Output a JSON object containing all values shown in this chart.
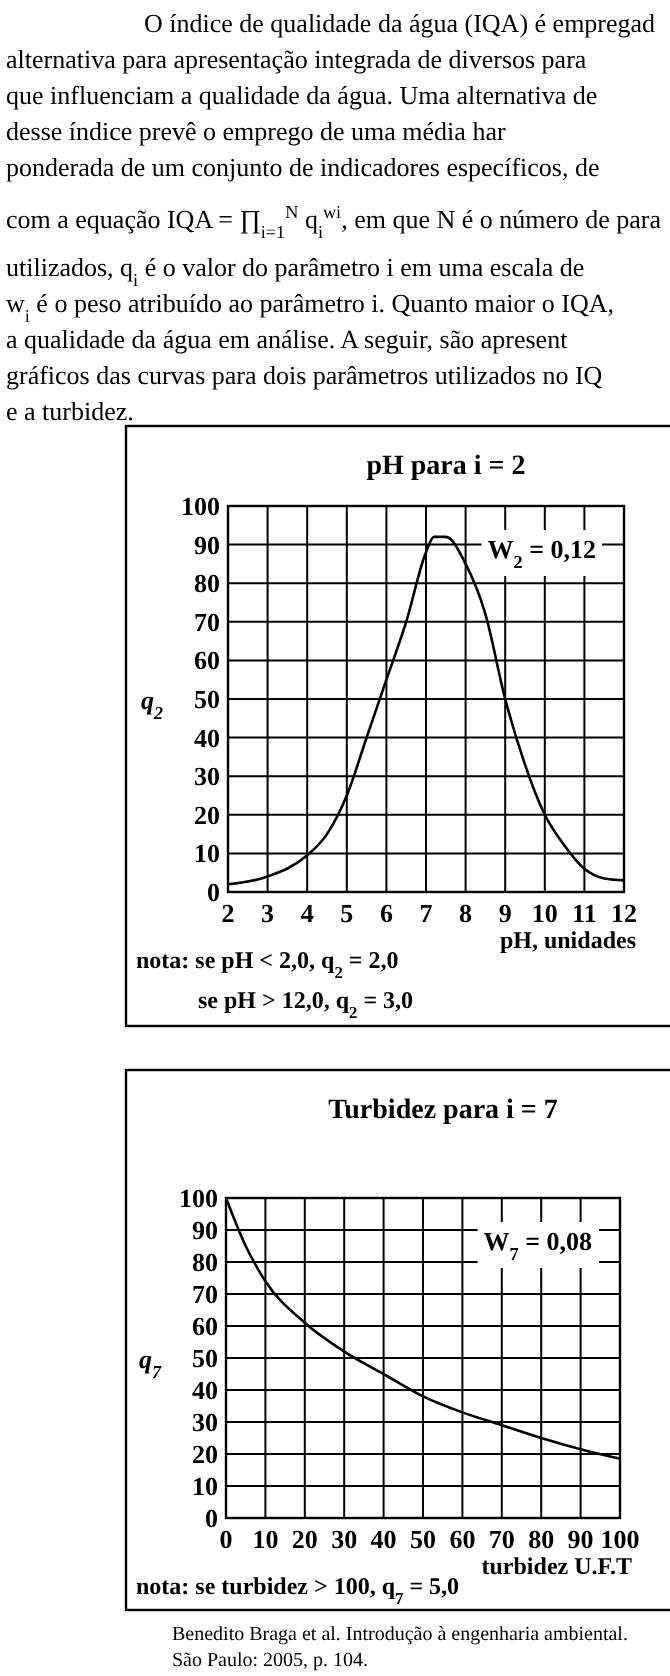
{
  "chart_data": [
    {
      "type": "other",
      "annotations": [
        "O índice de qualidade da água (IQA) é empregad",
        "alternativa para apresentação integrada de diversos para",
        "que influenciam a qualidade da água. Uma alternativa de",
        "desse índice prevê o emprego de uma média har",
        "ponderada de um conjunto de indicadores específicos, de",
        "com a equação IQA = ∏$_{i=1}$$^{N}$ q$_{i}$$^{wi}$, em que N é o número de para",
        "utilizados, q$_{i}$ é o valor do parâmetro i em uma escala de",
        "w$_{i}$ é o peso atribuído ao parâmetro i. Quanto maior o IQA,",
        "a qualidade da água em análise. A seguir, são apresent",
        "gráficos das curvas para dois parâmetros utilizados no IQ",
        "e a turbidez."
      ]
    },
    {
      "type": "line",
      "title": "pH para i = 2",
      "xlabel": "pH, unidades",
      "ylabel": "q$_{2}$",
      "xlim": [
        2,
        12
      ],
      "ylim": [
        0,
        100
      ],
      "xticks": [
        2,
        3,
        4,
        5,
        6,
        7,
        8,
        9,
        10,
        11,
        12
      ],
      "yticks": [
        0,
        10,
        20,
        30,
        40,
        50,
        60,
        70,
        80,
        90,
        100
      ],
      "grid": true,
      "x": [
        2,
        3,
        4,
        4.5,
        5,
        5.5,
        6,
        6.5,
        7,
        7.2,
        7.5,
        8,
        8.5,
        9,
        9.5,
        10,
        10.5,
        11,
        11.5,
        12
      ],
      "series": [
        {
          "color": "#000000",
          "values": [
            2,
            4,
            9.5,
            15,
            25,
            40,
            55,
            70,
            88,
            92,
            92,
            85,
            72,
            50,
            33,
            20,
            12,
            6,
            3.5,
            3
          ]
        }
      ],
      "annotations": [
        "W$_{2}$ = 0,12",
        "nota: se pH < 2,0, q$_{2}$ = 2,0",
        "se pH > 12,0, q$_{2}$ = 3,0"
      ]
    },
    {
      "type": "line",
      "title": "Turbidez para i = 7",
      "xlabel": "turbidez U.F.T",
      "ylabel": "q$_{7}$",
      "xlim": [
        0,
        100
      ],
      "ylim": [
        0,
        100
      ],
      "xticks": [
        0,
        10,
        20,
        30,
        40,
        50,
        60,
        70,
        80,
        90,
        100
      ],
      "yticks": [
        0,
        10,
        20,
        30,
        40,
        50,
        60,
        70,
        80,
        90,
        100
      ],
      "grid": true,
      "x": [
        0,
        5,
        10,
        20,
        30,
        40,
        50,
        60,
        70,
        80,
        90,
        100
      ],
      "series": [
        {
          "color": "#000000",
          "values": [
            100,
            85,
            74,
            61,
            52,
            45,
            38,
            33,
            29,
            25,
            21.5,
            18.5
          ]
        }
      ],
      "annotations": [
        "W$_{7}$ = 0,08",
        "nota: se turbidez > 100, q$_{7}$ = 5,0",
        "Benedito Braga et al. Introdução à engenharia ambiental.",
        "São Paulo: 2005, p. 104."
      ]
    }
  ]
}
